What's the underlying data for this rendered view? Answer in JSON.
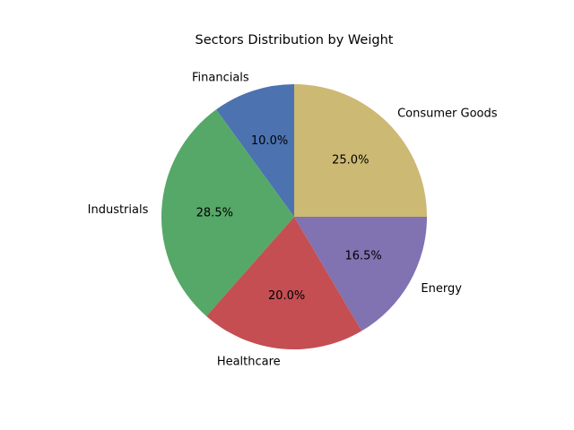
{
  "chart_data": {
    "type": "pie",
    "title": "Sectors Distribution by Weight",
    "labels": [
      "Consumer Goods",
      "Financials",
      "Industrials",
      "Healthcare",
      "Energy"
    ],
    "values": [
      25.0,
      10.0,
      28.5,
      20.0,
      16.5
    ],
    "value_labels": [
      "25.0%",
      "10.0%",
      "28.5%",
      "20.0%",
      "16.5%"
    ],
    "colors": [
      "#ccb974",
      "#4c72b0",
      "#55a868",
      "#c44e52",
      "#8172b2"
    ],
    "start_angle_deg": 0,
    "direction": "counterclockwise",
    "legend": "none"
  }
}
